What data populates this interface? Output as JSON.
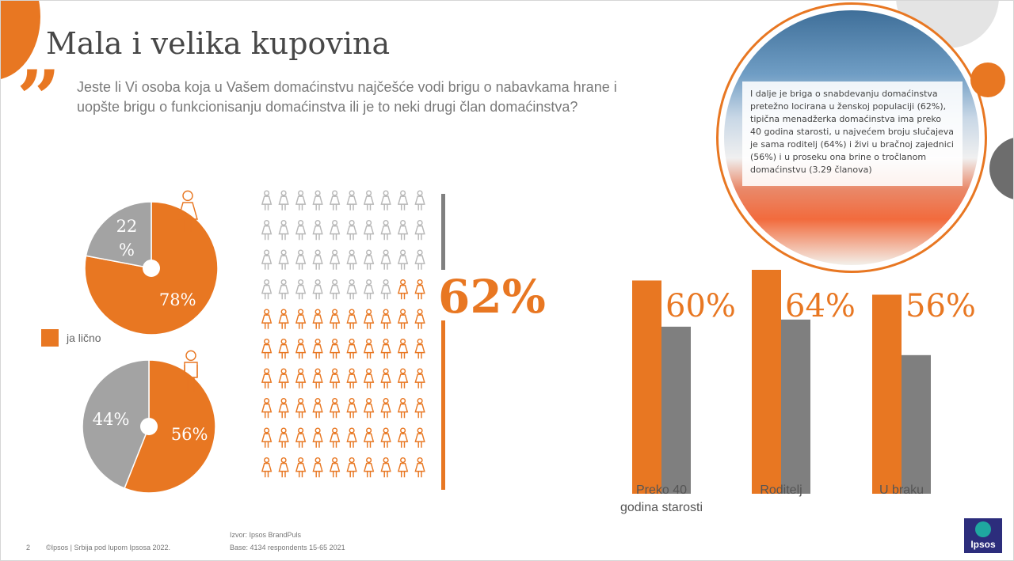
{
  "title": "Mala i velika kupovina",
  "question": "Jeste li Vi osoba koja u Vašem domaćinstvu najčešće vodi brigu o nabavkama hrane i uopšte brigu o funkcionisanju domaćinstva ili je to neki drugi član domaćinstva?",
  "note": "I dalje je briga o snabdevanju domaćinstva pretežno locirana u ženskoj populaciji (62%), tipična menadžerka domaćinstva ima preko 40 godina starosti, u najvećem broju slučajeva je sama roditelj (64%) i živi u bračnoj zajednici (56%) i u proseku ona brine o tročlanom domaćinstvu (3.29 članova)",
  "legend": {
    "label": "ja lično"
  },
  "colors": {
    "accent": "#e87722",
    "grey": "#a3a3a3",
    "bar_grey": "#7f7f7f",
    "icon_grey": "#b8b8b8"
  },
  "big_percent": "62%",
  "chart_data": [
    {
      "type": "pie",
      "title": "",
      "icon": "female-person-icon",
      "slices": [
        {
          "name": "ja lično",
          "value": 78,
          "label": "78%"
        },
        {
          "name": "",
          "value": 22,
          "label_lines": [
            "22",
            "%"
          ]
        }
      ]
    },
    {
      "type": "pie",
      "title": "",
      "icon": "male-person-icon",
      "slices": [
        {
          "name": "ja lično",
          "value": 56,
          "label": "56%"
        },
        {
          "name": "",
          "value": 44,
          "label": "44%"
        }
      ]
    },
    {
      "type": "pictogram",
      "title": "",
      "total": 100,
      "highlighted": 62,
      "label": "62%"
    },
    {
      "type": "bar",
      "title": "",
      "categories": [
        "Preko 40 godina starosti",
        "Roditelj",
        "U braku"
      ],
      "category_lines": [
        [
          "Preko 40",
          "godina starosti"
        ],
        [
          "Roditelj"
        ],
        [
          "U braku"
        ]
      ],
      "series": [
        {
          "values": [
            60,
            64,
            56
          ],
          "labels": [
            "60%",
            "64%",
            "56%"
          ]
        },
        {
          "values": [
            47,
            49,
            39
          ]
        }
      ],
      "ylim": [
        0,
        63
      ]
    }
  ],
  "footer": {
    "page": "2",
    "copyright": "©Ipsos | Srbija pod lupom Ipsosa 2022.",
    "source": "Izvor: Ipsos BrandPuls",
    "base": "Base: 4134 respondents 15-65 2021"
  },
  "logo": "Ipsos"
}
